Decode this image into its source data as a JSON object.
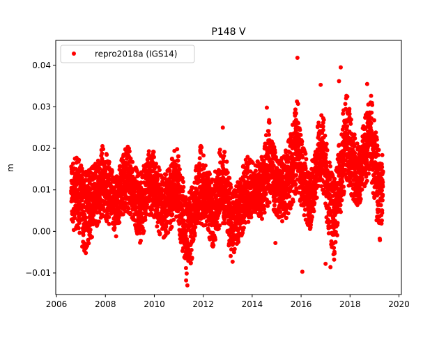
{
  "chart_data": {
    "type": "scatter",
    "title": "P148 V",
    "xlabel": "",
    "ylabel": "m",
    "xlim": [
      2005.97,
      2020.1
    ],
    "ylim": [
      -0.0152,
      0.046
    ],
    "xticks": [
      2006,
      2008,
      2010,
      2012,
      2014,
      2016,
      2018,
      2020
    ],
    "xtick_labels": [
      "2006",
      "2008",
      "2010",
      "2012",
      "2014",
      "2016",
      "2018",
      "2020"
    ],
    "yticks": [
      -0.01,
      0.0,
      0.01,
      0.02,
      0.03,
      0.04
    ],
    "ytick_labels": [
      "−0.01",
      "0.00",
      "0.01",
      "0.02",
      "0.03",
      "0.04"
    ],
    "grid": false,
    "legend": {
      "position": "top-left",
      "entries": [
        "repro2018a (IGS14)"
      ]
    },
    "series": [
      {
        "name": "repro2018a (IGS14)",
        "color": "#ff0000",
        "note": "approximate envelope of daily values: [year, typical, low, high] (m)",
        "envelope": [
          [
            2006.6,
            0.009,
            0.0,
            0.017
          ],
          [
            2006.9,
            0.01,
            0.001,
            0.018
          ],
          [
            2007.1,
            0.007,
            -0.005,
            0.014
          ],
          [
            2007.4,
            0.007,
            -0.002,
            0.015
          ],
          [
            2007.7,
            0.01,
            0.002,
            0.017
          ],
          [
            2007.9,
            0.012,
            0.004,
            0.021
          ],
          [
            2008.2,
            0.009,
            0.001,
            0.016
          ],
          [
            2008.4,
            0.005,
            -0.002,
            0.012
          ],
          [
            2008.7,
            0.012,
            0.004,
            0.018
          ],
          [
            2008.9,
            0.013,
            0.005,
            0.021
          ],
          [
            2009.2,
            0.009,
            0.002,
            0.016
          ],
          [
            2009.4,
            0.006,
            -0.003,
            0.013
          ],
          [
            2009.8,
            0.012,
            0.004,
            0.02
          ],
          [
            2010.0,
            0.011,
            0.003,
            0.019
          ],
          [
            2010.3,
            0.006,
            -0.002,
            0.013
          ],
          [
            2010.6,
            0.008,
            0.0,
            0.015
          ],
          [
            2010.9,
            0.011,
            0.003,
            0.021
          ],
          [
            2011.1,
            0.006,
            -0.003,
            0.014
          ],
          [
            2011.35,
            0.0,
            -0.011,
            0.008
          ],
          [
            2011.6,
            0.003,
            -0.005,
            0.012
          ],
          [
            2011.9,
            0.01,
            0.002,
            0.021
          ],
          [
            2012.1,
            0.009,
            0.001,
            0.016
          ],
          [
            2012.4,
            0.004,
            -0.004,
            0.012
          ],
          [
            2012.7,
            0.01,
            0.002,
            0.02
          ],
          [
            2012.9,
            0.01,
            0.002,
            0.019
          ],
          [
            2013.15,
            0.002,
            -0.007,
            0.01
          ],
          [
            2013.4,
            0.005,
            -0.003,
            0.013
          ],
          [
            2013.8,
            0.009,
            0.002,
            0.018
          ],
          [
            2014.1,
            0.01,
            0.004,
            0.016
          ],
          [
            2014.4,
            0.011,
            0.003,
            0.018
          ],
          [
            2014.7,
            0.016,
            0.007,
            0.027
          ],
          [
            2015.0,
            0.011,
            0.004,
            0.017
          ],
          [
            2015.3,
            0.01,
            0.002,
            0.018
          ],
          [
            2015.6,
            0.015,
            0.006,
            0.024
          ],
          [
            2015.85,
            0.021,
            0.01,
            0.032
          ],
          [
            2016.1,
            0.012,
            0.004,
            0.02
          ],
          [
            2016.4,
            0.007,
            0.0,
            0.015
          ],
          [
            2016.7,
            0.018,
            0.01,
            0.026
          ],
          [
            2016.9,
            0.019,
            0.01,
            0.029
          ],
          [
            2017.1,
            0.01,
            0.0,
            0.018
          ],
          [
            2017.35,
            0.004,
            -0.006,
            0.012
          ],
          [
            2017.6,
            0.014,
            0.004,
            0.024
          ],
          [
            2017.85,
            0.023,
            0.013,
            0.034
          ],
          [
            2018.1,
            0.017,
            0.008,
            0.025
          ],
          [
            2018.35,
            0.013,
            0.006,
            0.02
          ],
          [
            2018.6,
            0.019,
            0.011,
            0.027
          ],
          [
            2018.85,
            0.023,
            0.014,
            0.033
          ],
          [
            2019.05,
            0.014,
            0.004,
            0.024
          ],
          [
            2019.25,
            0.009,
            -0.003,
            0.017
          ],
          [
            2019.35,
            0.012,
            0.003,
            0.02
          ]
        ],
        "outliers": [
          [
            2015.85,
            0.0418
          ],
          [
            2017.62,
            0.0395
          ],
          [
            2017.55,
            0.0362
          ],
          [
            2016.8,
            0.0353
          ],
          [
            2018.7,
            0.0355
          ],
          [
            2011.35,
            -0.013
          ],
          [
            2011.3,
            -0.0118
          ],
          [
            2016.05,
            -0.0097
          ],
          [
            2017.2,
            -0.0086
          ],
          [
            2017.0,
            -0.0078
          ],
          [
            2017.35,
            -0.0068
          ],
          [
            2014.95,
            -0.0028
          ],
          [
            2007.2,
            -0.0052
          ],
          [
            2013.2,
            -0.0073
          ],
          [
            2012.8,
            0.025
          ],
          [
            2014.6,
            0.0298
          ]
        ]
      }
    ]
  }
}
